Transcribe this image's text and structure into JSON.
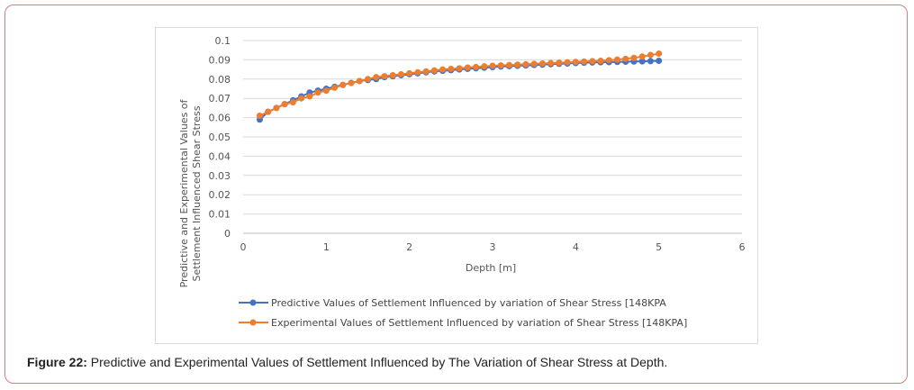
{
  "caption": {
    "label": "Figure 22:",
    "text": "Predictive and Experimental Values of Settlement Influenced by The Variation of Shear Stress at Depth."
  },
  "chart_data": {
    "type": "line",
    "xlabel": "Depth [m]",
    "ylabel_line1": "Predictive and Experimental  Values of",
    "ylabel_line2": "Settlement  Influenced Shear Stress",
    "xlim": [
      0,
      6
    ],
    "ylim": [
      0,
      0.1
    ],
    "x_ticks": [
      0,
      1,
      2,
      3,
      4,
      5,
      6
    ],
    "y_ticks": [
      0,
      0.01,
      0.02,
      0.03,
      0.04,
      0.05,
      0.06,
      0.07,
      0.08,
      0.09,
      0.1
    ],
    "grid": "horizontal",
    "legend_position": "bottom",
    "x": [
      0.2,
      0.3,
      0.4,
      0.5,
      0.6,
      0.7,
      0.8,
      0.9,
      1.0,
      1.1,
      1.2,
      1.3,
      1.4,
      1.5,
      1.6,
      1.7,
      1.8,
      1.9,
      2.0,
      2.1,
      2.2,
      2.3,
      2.4,
      2.5,
      2.6,
      2.7,
      2.8,
      2.9,
      3.0,
      3.1,
      3.2,
      3.3,
      3.4,
      3.5,
      3.6,
      3.7,
      3.8,
      3.9,
      4.0,
      4.1,
      4.2,
      4.3,
      4.4,
      4.5,
      4.6,
      4.7,
      4.8,
      4.9,
      5.0
    ],
    "series": [
      {
        "name": "Predictive Values of Settlement Influenced by variation of Shear Stress [148KPA",
        "color": "#4472c4",
        "values": [
          0.059,
          0.063,
          0.065,
          0.067,
          0.069,
          0.071,
          0.073,
          0.074,
          0.075,
          0.076,
          0.077,
          0.078,
          0.079,
          0.0795,
          0.08,
          0.081,
          0.0815,
          0.082,
          0.0825,
          0.083,
          0.0835,
          0.084,
          0.0843,
          0.0846,
          0.085,
          0.0853,
          0.0856,
          0.0859,
          0.0862,
          0.0865,
          0.0867,
          0.0869,
          0.0871,
          0.0873,
          0.0875,
          0.0877,
          0.0879,
          0.0881,
          0.0883,
          0.0885,
          0.0886,
          0.0887,
          0.0888,
          0.0889,
          0.089,
          0.0891,
          0.0892,
          0.0893,
          0.0895
        ]
      },
      {
        "name": "Experimental  Values of Settlement Influenced by variation of Shear Stress [148KPA]",
        "color": "#ed7d31",
        "values": [
          0.061,
          0.063,
          0.065,
          0.067,
          0.068,
          0.07,
          0.071,
          0.073,
          0.074,
          0.0755,
          0.077,
          0.078,
          0.079,
          0.08,
          0.081,
          0.0815,
          0.082,
          0.0825,
          0.083,
          0.0835,
          0.084,
          0.0845,
          0.085,
          0.0853,
          0.0856,
          0.086,
          0.0863,
          0.0866,
          0.0869,
          0.0871,
          0.0873,
          0.0875,
          0.0877,
          0.0879,
          0.0881,
          0.0883,
          0.0885,
          0.0887,
          0.0889,
          0.0891,
          0.0893,
          0.0895,
          0.0898,
          0.0901,
          0.0905,
          0.091,
          0.0917,
          0.0925,
          0.0932
        ]
      }
    ]
  }
}
